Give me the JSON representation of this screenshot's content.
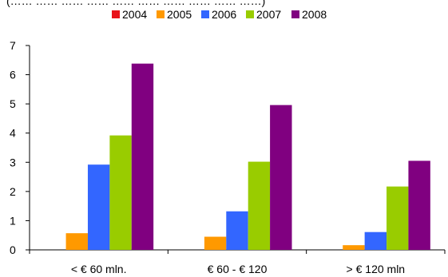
{
  "chart_data": {
    "type": "bar",
    "title": "(…… …… …… …… …… …… …… …… …… ……)",
    "xlabel": "",
    "ylabel": "",
    "categories": [
      "< € 60 mln.",
      "€ 60 - € 120",
      "> € 120 mln"
    ],
    "series": [
      {
        "name": "2004",
        "color": "#e8121a",
        "values": [
          0,
          0,
          0
        ]
      },
      {
        "name": "2005",
        "color": "#ff9900",
        "values": [
          0.57,
          0.45,
          0.16
        ]
      },
      {
        "name": "2006",
        "color": "#3366ff",
        "values": [
          2.92,
          1.32,
          0.61
        ]
      },
      {
        "name": "2007",
        "color": "#99cc00",
        "values": [
          3.92,
          3.02,
          2.17
        ]
      },
      {
        "name": "2008",
        "color": "#800080",
        "values": [
          6.38,
          4.96,
          3.05
        ]
      }
    ],
    "ylim": [
      0,
      7
    ],
    "yticks": [
      "0",
      "1",
      "2",
      "3",
      "4",
      "5",
      "6",
      "7"
    ],
    "grid": false,
    "legend_position": "top"
  }
}
